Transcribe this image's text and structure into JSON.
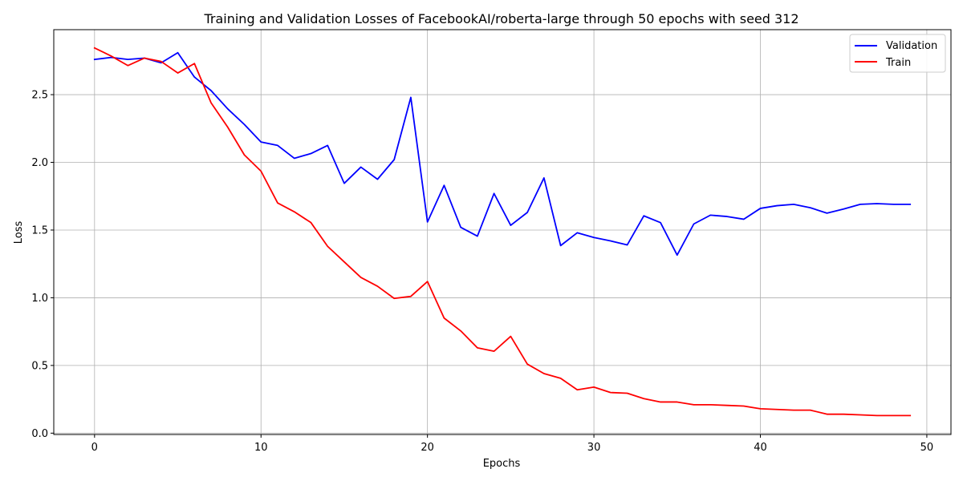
{
  "chart_data": {
    "type": "line",
    "title": "Training and Validation Losses of FacebookAI/roberta-large through 50 epochs with seed 312",
    "xlabel": "Epochs",
    "ylabel": "Loss",
    "xlim": [
      -2.45,
      51.45
    ],
    "ylim": [
      -0.01,
      2.98
    ],
    "xticks": [
      0,
      10,
      20,
      30,
      40,
      50
    ],
    "yticks": [
      0.0,
      0.5,
      1.0,
      1.5,
      2.0,
      2.5
    ],
    "xtick_labels": [
      "0",
      "10",
      "20",
      "30",
      "40",
      "50"
    ],
    "ytick_labels": [
      "0.0",
      "0.5",
      "1.0",
      "1.5",
      "2.0",
      "2.5"
    ],
    "grid": true,
    "legend_position": "top-right",
    "x": [
      0,
      1,
      2,
      3,
      4,
      5,
      6,
      7,
      8,
      9,
      10,
      11,
      12,
      13,
      14,
      15,
      16,
      17,
      18,
      19,
      20,
      21,
      22,
      23,
      24,
      25,
      26,
      27,
      28,
      29,
      30,
      31,
      32,
      33,
      34,
      35,
      36,
      37,
      38,
      39,
      40,
      41,
      42,
      43,
      44,
      45,
      46,
      47,
      48,
      49
    ],
    "series": [
      {
        "name": "Validation",
        "color": "#0000ff",
        "values": [
          2.76,
          2.775,
          2.76,
          2.77,
          2.735,
          2.81,
          2.63,
          2.53,
          2.395,
          2.28,
          2.15,
          2.125,
          2.03,
          2.065,
          2.125,
          1.845,
          1.965,
          1.875,
          2.02,
          2.48,
          1.56,
          1.83,
          1.52,
          1.455,
          1.77,
          1.535,
          1.63,
          1.885,
          1.385,
          1.48,
          1.445,
          1.42,
          1.39,
          1.605,
          1.555,
          1.315,
          1.545,
          1.61,
          1.6,
          1.58,
          1.66,
          1.68,
          1.69,
          1.665,
          1.625,
          1.655,
          1.69,
          1.695,
          1.69,
          1.69
        ]
      },
      {
        "name": "Train",
        "color": "#ff0000",
        "values": [
          2.845,
          2.785,
          2.715,
          2.77,
          2.745,
          2.66,
          2.73,
          2.44,
          2.26,
          2.055,
          1.935,
          1.7,
          1.635,
          1.555,
          1.38,
          1.265,
          1.15,
          1.085,
          0.995,
          1.01,
          1.12,
          0.85,
          0.755,
          0.63,
          0.605,
          0.715,
          0.51,
          0.44,
          0.405,
          0.32,
          0.34,
          0.3,
          0.295,
          0.255,
          0.23,
          0.23,
          0.21,
          0.21,
          0.205,
          0.2,
          0.18,
          0.175,
          0.17,
          0.17,
          0.14,
          0.14,
          0.135,
          0.13,
          0.13,
          0.13
        ]
      }
    ]
  }
}
